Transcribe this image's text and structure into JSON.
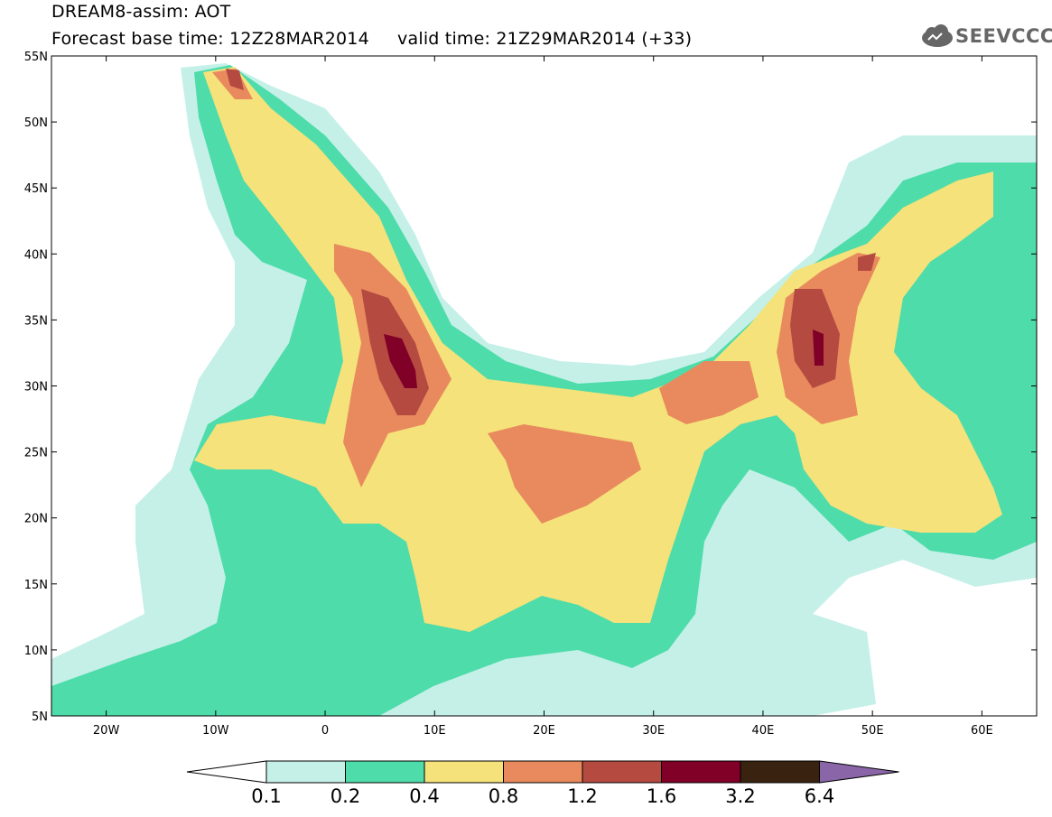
{
  "header": {
    "line1": "DREAM8-assim: AOT",
    "line2": "Forecast base time: 12Z28MAR2014     valid time: 21Z29MAR2014 (+33)"
  },
  "logo": {
    "text": "SEEVCCC",
    "icon": "cloud-icon"
  },
  "map": {
    "lon_range": [
      -25,
      65
    ],
    "lat_range": [
      5,
      55
    ],
    "lat_ticks": [
      "55N",
      "50N",
      "45N",
      "40N",
      "35N",
      "30N",
      "25N",
      "20N",
      "15N",
      "10N",
      "5N"
    ],
    "lon_ticks": [
      "20W",
      "10W",
      "0",
      "10E",
      "20E",
      "30E",
      "40E",
      "50E",
      "60E"
    ]
  },
  "colorbar": {
    "labels": [
      "0.1",
      "0.2",
      "0.4",
      "0.8",
      "1.2",
      "1.6",
      "3.2",
      "6.4"
    ],
    "colors": [
      "#ffffff",
      "#c4f0e8",
      "#4edcaa",
      "#f5e27a",
      "#e88a5e",
      "#b54a40",
      "#800028",
      "#3a2210",
      "#8a66a8"
    ]
  },
  "colors": {
    "c01": "#c4f0e8",
    "c02": "#4edcaa",
    "c04": "#f5e27a",
    "c08": "#e88a5e",
    "c12": "#b54a40",
    "c16": "#800028"
  }
}
